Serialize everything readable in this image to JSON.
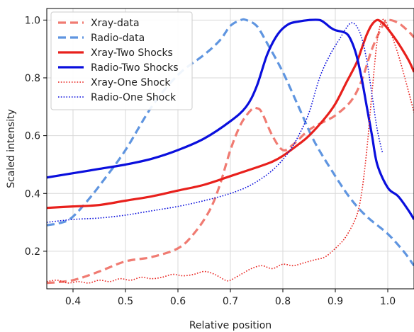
{
  "chart_data": {
    "type": "line",
    "title": "",
    "xlabel": "Relative position",
    "ylabel": "Scaled intensity",
    "xlim": [
      0.35,
      1.05
    ],
    "ylim": [
      0.07,
      1.04
    ],
    "xticks": [
      0.4,
      0.5,
      0.6,
      0.7,
      0.8,
      0.9,
      1.0
    ],
    "xtick_labels": [
      "0.4",
      "0.5",
      "0.6",
      "0.7",
      "0.8",
      "0.9",
      "1.0"
    ],
    "yticks": [
      0.2,
      0.4,
      0.6,
      0.8,
      1.0
    ],
    "ytick_labels": [
      "0.2",
      "0.4",
      "0.6",
      "0.8",
      "1.0"
    ],
    "grid": true,
    "legend_position": "top-left",
    "series": [
      {
        "name": "Xray-data",
        "color": "#f07b72",
        "style": "dashed",
        "width": 3.2,
        "x": [
          0.35,
          0.4,
          0.45,
          0.5,
          0.55,
          0.6,
          0.63,
          0.66,
          0.68,
          0.7,
          0.72,
          0.74,
          0.75,
          0.76,
          0.78,
          0.8,
          0.82,
          0.85,
          0.88,
          0.9,
          0.93,
          0.95,
          0.97,
          0.99,
          1.0,
          1.02,
          1.04,
          1.05
        ],
        "y": [
          0.09,
          0.1,
          0.13,
          0.165,
          0.18,
          0.21,
          0.26,
          0.34,
          0.43,
          0.55,
          0.64,
          0.69,
          0.695,
          0.68,
          0.6,
          0.55,
          0.57,
          0.62,
          0.65,
          0.67,
          0.72,
          0.79,
          0.9,
          0.98,
          1.0,
          0.99,
          0.96,
          0.94
        ]
      },
      {
        "name": "Radio-data",
        "color": "#5f95e0",
        "style": "dashed",
        "width": 3.2,
        "x": [
          0.35,
          0.38,
          0.4,
          0.43,
          0.46,
          0.5,
          0.55,
          0.6,
          0.65,
          0.68,
          0.7,
          0.72,
          0.73,
          0.75,
          0.77,
          0.8,
          0.83,
          0.86,
          0.9,
          0.93,
          0.96,
          1.0,
          1.03,
          1.05
        ],
        "y": [
          0.29,
          0.3,
          0.32,
          0.38,
          0.45,
          0.55,
          0.7,
          0.81,
          0.88,
          0.93,
          0.98,
          1.0,
          1.0,
          0.98,
          0.92,
          0.82,
          0.7,
          0.58,
          0.46,
          0.38,
          0.32,
          0.26,
          0.2,
          0.15
        ]
      },
      {
        "name": "Xray-Two Shocks",
        "color": "#e8201c",
        "style": "solid",
        "width": 3.2,
        "x": [
          0.35,
          0.4,
          0.45,
          0.5,
          0.55,
          0.6,
          0.65,
          0.7,
          0.75,
          0.78,
          0.8,
          0.83,
          0.85,
          0.88,
          0.9,
          0.92,
          0.94,
          0.95,
          0.96,
          0.97,
          0.98,
          0.99,
          1.0,
          1.02,
          1.04,
          1.05
        ],
        "y": [
          0.35,
          0.355,
          0.36,
          0.375,
          0.39,
          0.41,
          0.43,
          0.46,
          0.49,
          0.51,
          0.53,
          0.57,
          0.6,
          0.66,
          0.71,
          0.78,
          0.85,
          0.9,
          0.95,
          0.985,
          1.0,
          0.99,
          0.97,
          0.92,
          0.86,
          0.82
        ]
      },
      {
        "name": "Radio-Two Shocks",
        "color": "#0a0fdd",
        "style": "solid",
        "width": 3.2,
        "x": [
          0.35,
          0.4,
          0.45,
          0.5,
          0.55,
          0.6,
          0.65,
          0.7,
          0.73,
          0.75,
          0.77,
          0.79,
          0.81,
          0.83,
          0.85,
          0.87,
          0.88,
          0.89,
          0.9,
          0.92,
          0.93,
          0.94,
          0.95,
          0.96,
          0.97,
          0.98,
          1.0,
          1.02,
          1.04,
          1.05
        ],
        "y": [
          0.455,
          0.47,
          0.485,
          0.5,
          0.52,
          0.55,
          0.59,
          0.65,
          0.7,
          0.77,
          0.88,
          0.95,
          0.985,
          0.995,
          1.0,
          1.0,
          0.99,
          0.975,
          0.965,
          0.955,
          0.93,
          0.88,
          0.8,
          0.7,
          0.6,
          0.5,
          0.42,
          0.39,
          0.34,
          0.31
        ]
      },
      {
        "name": "Xray-One Shock",
        "color": "#e8201c",
        "style": "dotted",
        "width": 1.6,
        "x": [
          0.35,
          0.37,
          0.39,
          0.41,
          0.43,
          0.45,
          0.47,
          0.49,
          0.51,
          0.53,
          0.55,
          0.57,
          0.59,
          0.61,
          0.63,
          0.65,
          0.67,
          0.69,
          0.7,
          0.72,
          0.74,
          0.76,
          0.78,
          0.8,
          0.82,
          0.84,
          0.86,
          0.88,
          0.9,
          0.92,
          0.94,
          0.95,
          0.96,
          0.97,
          0.98,
          0.99,
          1.0,
          1.02,
          1.04,
          1.05
        ],
        "y": [
          0.095,
          0.1,
          0.09,
          0.095,
          0.09,
          0.1,
          0.095,
          0.105,
          0.1,
          0.11,
          0.105,
          0.11,
          0.12,
          0.115,
          0.12,
          0.13,
          0.12,
          0.1,
          0.1,
          0.12,
          0.14,
          0.15,
          0.14,
          0.155,
          0.15,
          0.16,
          0.17,
          0.18,
          0.21,
          0.25,
          0.32,
          0.4,
          0.55,
          0.75,
          0.93,
          1.0,
          0.98,
          0.88,
          0.75,
          0.68
        ]
      },
      {
        "name": "Radio-One Shock",
        "color": "#0a0fdd",
        "style": "dotted",
        "width": 1.6,
        "x": [
          0.35,
          0.4,
          0.45,
          0.5,
          0.55,
          0.6,
          0.65,
          0.7,
          0.74,
          0.78,
          0.81,
          0.83,
          0.85,
          0.87,
          0.89,
          0.91,
          0.92,
          0.93,
          0.94,
          0.95,
          0.96,
          0.97,
          0.98,
          0.99
        ],
        "y": [
          0.3,
          0.31,
          0.315,
          0.325,
          0.34,
          0.355,
          0.375,
          0.4,
          0.43,
          0.48,
          0.54,
          0.6,
          0.68,
          0.8,
          0.88,
          0.94,
          0.97,
          0.99,
          0.98,
          0.94,
          0.86,
          0.74,
          0.62,
          0.54
        ]
      }
    ]
  }
}
